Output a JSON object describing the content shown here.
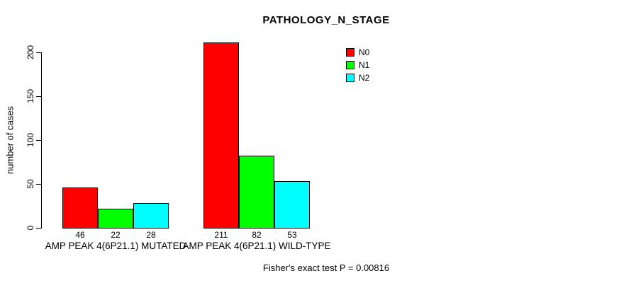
{
  "title": "PATHOLOGY_N_STAGE",
  "footer": "Fisher's exact test P = 0.00816",
  "chart_data": {
    "type": "bar",
    "title": "PATHOLOGY_N_STAGE",
    "xlabel": "",
    "ylabel": "number of cases",
    "ylim": [
      0,
      200
    ],
    "yticks": [
      0,
      50,
      100,
      150,
      200
    ],
    "grid": false,
    "legend_position": "top-right",
    "bar_value_labels": true,
    "categories": [
      "AMP PEAK 4(6P21.1) MUTATED",
      "AMP PEAK 4(6P21.1) WILD-TYPE"
    ],
    "series": [
      {
        "name": "N0",
        "color": "#ff0000",
        "values": [
          46,
          211
        ]
      },
      {
        "name": "N1",
        "color": "#00ff00",
        "values": [
          22,
          82
        ]
      },
      {
        "name": "N2",
        "color": "#00ffff",
        "values": [
          28,
          53
        ]
      }
    ],
    "annotation": "Fisher's exact test P = 0.00816"
  }
}
